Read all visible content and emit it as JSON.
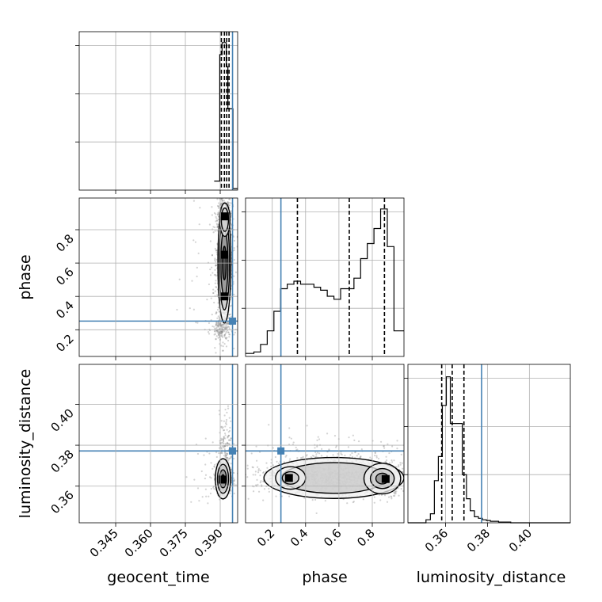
{
  "chart_data": {
    "type": "corner",
    "parameters": [
      "geocent_time",
      "phase",
      "luminosity_distance"
    ],
    "axis_labels": {
      "geocent_time": "geocent_time",
      "phase": "phase",
      "luminosity_distance": "luminosity_distance"
    },
    "ranges": {
      "geocent_time": [
        0.3293,
        0.3975
      ],
      "phase": [
        0.04,
        0.99
      ],
      "luminosity_distance": [
        0.3421,
        0.4195
      ]
    },
    "ticks": {
      "geocent_time": [
        "0.345",
        "0.360",
        "0.375",
        "0.390"
      ],
      "phase": [
        "0.2",
        "0.4",
        "0.6",
        "0.8"
      ],
      "luminosity_distance": [
        "0.36",
        "0.38",
        "0.40"
      ]
    },
    "injection": {
      "geocent_time": 0.3953,
      "phase": 0.252,
      "luminosity_distance": 0.3772
    },
    "grid": true,
    "colors": {
      "injection": "#4682b4",
      "histogram": "#000000",
      "samples": "#808080"
    },
    "panels": {
      "geocent_time_hist": {
        "quantiles": [
          0.3905,
          0.3918,
          0.3928,
          0.3938
        ],
        "bins": [
          {
            "x0": 0.3874,
            "x1": 0.3898,
            "density": 0.06
          },
          {
            "x0": 0.3898,
            "x1": 0.3908,
            "density": 0.9
          },
          {
            "x0": 0.3908,
            "x1": 0.3926,
            "density": 0.98
          },
          {
            "x0": 0.3926,
            "x1": 0.3933,
            "density": 0.82
          },
          {
            "x0": 0.3933,
            "x1": 0.3955,
            "density": 0.54
          },
          {
            "x0": 0.3955,
            "x1": 0.3975,
            "density": 0.01
          }
        ]
      },
      "phase_hist": {
        "quantiles": [
          0.351,
          0.662,
          0.873
        ],
        "bins": [
          {
            "x0": 0.04,
            "x1": 0.09,
            "density": 0.02
          },
          {
            "x0": 0.09,
            "x1": 0.13,
            "density": 0.03
          },
          {
            "x0": 0.13,
            "x1": 0.17,
            "density": 0.08
          },
          {
            "x0": 0.17,
            "x1": 0.21,
            "density": 0.17
          },
          {
            "x0": 0.21,
            "x1": 0.25,
            "density": 0.3
          },
          {
            "x0": 0.25,
            "x1": 0.29,
            "density": 0.45
          },
          {
            "x0": 0.29,
            "x1": 0.33,
            "density": 0.48
          },
          {
            "x0": 0.33,
            "x1": 0.37,
            "density": 0.5
          },
          {
            "x0": 0.37,
            "x1": 0.41,
            "density": 0.48
          },
          {
            "x0": 0.41,
            "x1": 0.45,
            "density": 0.48
          },
          {
            "x0": 0.45,
            "x1": 0.49,
            "density": 0.46
          },
          {
            "x0": 0.49,
            "x1": 0.53,
            "density": 0.44
          },
          {
            "x0": 0.53,
            "x1": 0.57,
            "density": 0.4
          },
          {
            "x0": 0.57,
            "x1": 0.61,
            "density": 0.38
          },
          {
            "x0": 0.61,
            "x1": 0.65,
            "density": 0.45
          },
          {
            "x0": 0.65,
            "x1": 0.69,
            "density": 0.45
          },
          {
            "x0": 0.69,
            "x1": 0.73,
            "density": 0.52
          },
          {
            "x0": 0.73,
            "x1": 0.77,
            "density": 0.65
          },
          {
            "x0": 0.77,
            "x1": 0.81,
            "density": 0.75
          },
          {
            "x0": 0.81,
            "x1": 0.85,
            "density": 0.85
          },
          {
            "x0": 0.85,
            "x1": 0.89,
            "density": 0.98
          },
          {
            "x0": 0.89,
            "x1": 0.93,
            "density": 0.73
          },
          {
            "x0": 0.93,
            "x1": 0.96,
            "density": 0.17
          },
          {
            "x0": 0.96,
            "x1": 0.99,
            "density": 0.17
          }
        ]
      },
      "luminosity_distance_hist": {
        "quantiles": [
          0.3582,
          0.3632,
          0.3688
        ],
        "bins": [
          {
            "x0": 0.3421,
            "x1": 0.3507,
            "density": 0.0
          },
          {
            "x0": 0.3507,
            "x1": 0.3528,
            "density": 0.02
          },
          {
            "x0": 0.3528,
            "x1": 0.3547,
            "density": 0.06
          },
          {
            "x0": 0.3547,
            "x1": 0.3566,
            "density": 0.28
          },
          {
            "x0": 0.3566,
            "x1": 0.3585,
            "density": 0.44
          },
          {
            "x0": 0.3585,
            "x1": 0.3604,
            "density": 0.78
          },
          {
            "x0": 0.3604,
            "x1": 0.3623,
            "density": 0.97
          },
          {
            "x0": 0.3623,
            "x1": 0.3642,
            "density": 0.66
          },
          {
            "x0": 0.3642,
            "x1": 0.3661,
            "density": 0.66
          },
          {
            "x0": 0.3661,
            "x1": 0.368,
            "density": 0.66
          },
          {
            "x0": 0.368,
            "x1": 0.37,
            "density": 0.32
          },
          {
            "x0": 0.37,
            "x1": 0.3718,
            "density": 0.16
          },
          {
            "x0": 0.3718,
            "x1": 0.3738,
            "density": 0.08
          },
          {
            "x0": 0.3738,
            "x1": 0.3757,
            "density": 0.04
          },
          {
            "x0": 0.3757,
            "x1": 0.3776,
            "density": 0.03
          },
          {
            "x0": 0.3776,
            "x1": 0.3795,
            "density": 0.02
          },
          {
            "x0": 0.3795,
            "x1": 0.3814,
            "density": 0.015
          },
          {
            "x0": 0.3814,
            "x1": 0.3853,
            "density": 0.01
          },
          {
            "x0": 0.3853,
            "x1": 0.3911,
            "density": 0.005
          },
          {
            "x0": 0.3911,
            "x1": 0.4195,
            "density": 0.0
          }
        ]
      },
      "phase_vs_geocent_time": {
        "x": "geocent_time",
        "y": "phase",
        "density_modes": [
          {
            "x": 0.392,
            "y": 0.88
          },
          {
            "x": 0.3918,
            "y": 0.4
          },
          {
            "x": 0.3917,
            "y": 0.65
          }
        ]
      },
      "luminosity_distance_vs_geocent_time": {
        "x": "geocent_time",
        "y": "luminosity_distance",
        "density_modes": [
          {
            "x": 0.391,
            "y": 0.3632
          }
        ]
      },
      "luminosity_distance_vs_phase": {
        "x": "phase",
        "y": "luminosity_distance",
        "density_modes": [
          {
            "x": 0.88,
            "y": 0.3635
          },
          {
            "x": 0.3,
            "y": 0.364
          }
        ]
      }
    }
  }
}
